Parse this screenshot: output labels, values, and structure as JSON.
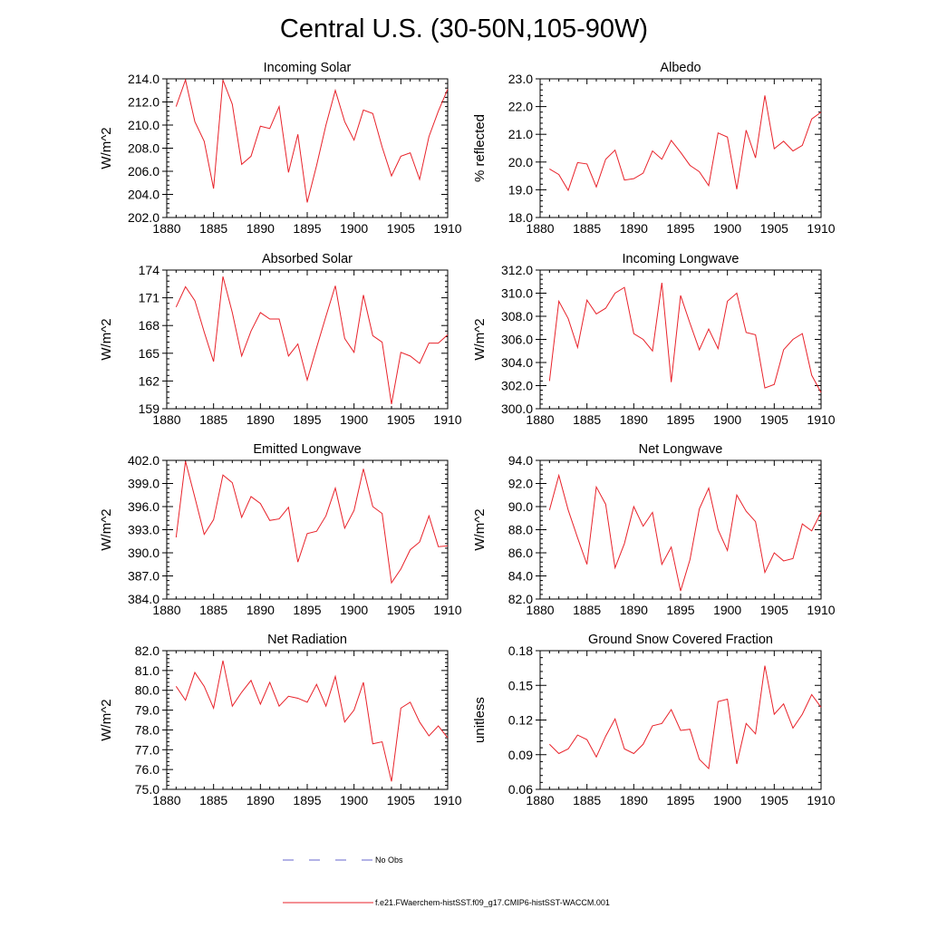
{
  "title": "Central U.S. (30-50N,105-90W)",
  "legend": {
    "entries": [
      {
        "label": "No Obs",
        "color": "#6666cc",
        "style": "dashed"
      },
      {
        "label": "f.e21.FWaerchem-histSST.f09_g17.CMIP6-histSST-WACCM.001",
        "color": "#e8222a",
        "style": "solid"
      }
    ]
  },
  "chart_data": [
    {
      "type": "line",
      "title": "Incoming Solar",
      "ylabel": "W/m^2",
      "xlim": [
        1880,
        1910
      ],
      "ylim": [
        202.0,
        214.0
      ],
      "xticks": [
        "1880",
        "1885",
        "1890",
        "1895",
        "1900",
        "1905",
        "1910"
      ],
      "yticks": [
        "202.0",
        "204.0",
        "206.0",
        "208.0",
        "210.0",
        "212.0",
        "214.0"
      ],
      "series": [
        {
          "color": "#e8222a",
          "x": [
            1881,
            1882,
            1883,
            1884,
            1885,
            1886,
            1887,
            1888,
            1889,
            1890,
            1891,
            1892,
            1893,
            1894,
            1895,
            1896,
            1897,
            1898,
            1899,
            1900,
            1901,
            1902,
            1903,
            1904,
            1905,
            1906,
            1907,
            1908,
            1909,
            1910
          ],
          "y": [
            211.6,
            213.9,
            210.3,
            208.6,
            204.5,
            213.9,
            211.8,
            206.6,
            207.3,
            209.9,
            209.7,
            211.6,
            205.9,
            209.2,
            203.3,
            206.5,
            210.0,
            213.0,
            210.3,
            208.7,
            211.3,
            211.0,
            208.1,
            205.6,
            207.3,
            207.6,
            205.3,
            209.0,
            211.2,
            213.1
          ]
        }
      ]
    },
    {
      "type": "line",
      "title": "Albedo",
      "ylabel": "% reflected",
      "xlim": [
        1880,
        1910
      ],
      "ylim": [
        18.0,
        23.0
      ],
      "xticks": [
        "1880",
        "1885",
        "1890",
        "1895",
        "1900",
        "1905",
        "1910"
      ],
      "yticks": [
        "18.0",
        "19.0",
        "20.0",
        "21.0",
        "22.0",
        "23.0"
      ],
      "series": [
        {
          "color": "#e8222a",
          "x": [
            1881,
            1882,
            1883,
            1884,
            1885,
            1886,
            1887,
            1888,
            1889,
            1890,
            1891,
            1892,
            1893,
            1894,
            1895,
            1896,
            1897,
            1898,
            1899,
            1900,
            1901,
            1902,
            1903,
            1904,
            1905,
            1906,
            1907,
            1908,
            1909,
            1910
          ],
          "y": [
            19.75,
            19.55,
            18.98,
            19.98,
            19.93,
            19.1,
            20.1,
            20.43,
            19.35,
            19.4,
            19.6,
            20.4,
            20.1,
            20.78,
            20.35,
            19.88,
            19.65,
            19.15,
            21.05,
            20.9,
            19.02,
            21.15,
            20.15,
            22.4,
            20.48,
            20.75,
            20.4,
            20.6,
            21.55,
            21.8
          ]
        }
      ]
    },
    {
      "type": "line",
      "title": "Absorbed Solar",
      "ylabel": "W/m^2",
      "xlim": [
        1880,
        1910
      ],
      "ylim": [
        159,
        174
      ],
      "xticks": [
        "1880",
        "1885",
        "1890",
        "1895",
        "1900",
        "1905",
        "1910"
      ],
      "yticks": [
        "159",
        "162",
        "165",
        "168",
        "171",
        "174"
      ],
      "series": [
        {
          "color": "#e8222a",
          "x": [
            1881,
            1882,
            1883,
            1884,
            1885,
            1886,
            1887,
            1888,
            1889,
            1890,
            1891,
            1892,
            1893,
            1894,
            1895,
            1896,
            1897,
            1898,
            1899,
            1900,
            1901,
            1902,
            1903,
            1904,
            1905,
            1906,
            1907,
            1908,
            1909,
            1910
          ],
          "y": [
            170.0,
            172.2,
            170.7,
            167.3,
            164.1,
            173.3,
            169.4,
            164.7,
            167.4,
            169.4,
            168.7,
            168.7,
            164.7,
            166.0,
            162.1,
            165.6,
            169.0,
            172.3,
            166.6,
            165.1,
            171.3,
            166.9,
            166.2,
            159.5,
            165.1,
            164.7,
            163.9,
            166.1,
            166.1,
            167.0
          ]
        }
      ]
    },
    {
      "type": "line",
      "title": "Incoming Longwave",
      "ylabel": "W/m^2",
      "xlim": [
        1880,
        1910
      ],
      "ylim": [
        300.0,
        312.0
      ],
      "xticks": [
        "1880",
        "1885",
        "1890",
        "1895",
        "1900",
        "1905",
        "1910"
      ],
      "yticks": [
        "300.0",
        "302.0",
        "304.0",
        "306.0",
        "308.0",
        "310.0",
        "312.0"
      ],
      "series": [
        {
          "color": "#e8222a",
          "x": [
            1881,
            1882,
            1883,
            1884,
            1885,
            1886,
            1887,
            1888,
            1889,
            1890,
            1891,
            1892,
            1893,
            1894,
            1895,
            1896,
            1897,
            1898,
            1899,
            1900,
            1901,
            1902,
            1903,
            1904,
            1905,
            1906,
            1907,
            1908,
            1909,
            1910
          ],
          "y": [
            302.4,
            309.3,
            307.8,
            305.3,
            309.4,
            308.2,
            308.7,
            310.0,
            310.5,
            306.5,
            306.0,
            305.0,
            310.9,
            302.3,
            309.8,
            307.4,
            305.1,
            306.9,
            305.2,
            309.3,
            310.0,
            306.6,
            306.4,
            301.8,
            302.1,
            305.1,
            306.0,
            306.5,
            302.9,
            301.4
          ]
        }
      ]
    },
    {
      "type": "line",
      "title": "Emitted Longwave",
      "ylabel": "W/m^2",
      "xlim": [
        1880,
        1910
      ],
      "ylim": [
        384.0,
        402.0
      ],
      "xticks": [
        "1880",
        "1885",
        "1890",
        "1895",
        "1900",
        "1905",
        "1910"
      ],
      "yticks": [
        "384.0",
        "387.0",
        "390.0",
        "393.0",
        "396.0",
        "399.0",
        "402.0"
      ],
      "series": [
        {
          "color": "#e8222a",
          "x": [
            1881,
            1882,
            1883,
            1884,
            1885,
            1886,
            1887,
            1888,
            1889,
            1890,
            1891,
            1892,
            1893,
            1894,
            1895,
            1896,
            1897,
            1898,
            1899,
            1900,
            1901,
            1902,
            1903,
            1904,
            1905,
            1906,
            1907,
            1908,
            1909,
            1910
          ],
          "y": [
            392.0,
            401.9,
            397.2,
            392.4,
            394.3,
            400.1,
            399.1,
            394.6,
            397.3,
            396.4,
            394.2,
            394.4,
            395.9,
            388.8,
            392.5,
            392.8,
            394.8,
            398.4,
            393.2,
            395.5,
            400.9,
            396.0,
            395.1,
            386.1,
            387.9,
            390.4,
            391.4,
            394.8,
            390.8,
            390.9
          ]
        }
      ]
    },
    {
      "type": "line",
      "title": "Net Longwave",
      "ylabel": "W/m^2",
      "xlim": [
        1880,
        1910
      ],
      "ylim": [
        82.0,
        94.0
      ],
      "xticks": [
        "1880",
        "1885",
        "1890",
        "1895",
        "1900",
        "1905",
        "1910"
      ],
      "yticks": [
        "82.0",
        "84.0",
        "86.0",
        "88.0",
        "90.0",
        "92.0",
        "94.0"
      ],
      "series": [
        {
          "color": "#e8222a",
          "x": [
            1881,
            1882,
            1883,
            1884,
            1885,
            1886,
            1887,
            1888,
            1889,
            1890,
            1891,
            1892,
            1893,
            1894,
            1895,
            1896,
            1897,
            1898,
            1899,
            1900,
            1901,
            1902,
            1903,
            1904,
            1905,
            1906,
            1907,
            1908,
            1909,
            1910
          ],
          "y": [
            89.7,
            92.7,
            89.7,
            87.3,
            85.0,
            91.7,
            90.2,
            84.7,
            86.8,
            90.0,
            88.3,
            89.5,
            85.0,
            86.5,
            82.7,
            85.4,
            89.8,
            91.6,
            88.0,
            86.2,
            91.0,
            89.6,
            88.7,
            84.3,
            86.0,
            85.3,
            85.5,
            88.5,
            87.9,
            89.5
          ]
        }
      ]
    },
    {
      "type": "line",
      "title": "Net Radiation",
      "ylabel": "W/m^2",
      "xlim": [
        1880,
        1910
      ],
      "ylim": [
        75.0,
        82.0
      ],
      "xticks": [
        "1880",
        "1885",
        "1890",
        "1895",
        "1900",
        "1905",
        "1910"
      ],
      "yticks": [
        "75.0",
        "76.0",
        "77.0",
        "78.0",
        "79.0",
        "80.0",
        "81.0",
        "82.0"
      ],
      "series": [
        {
          "color": "#e8222a",
          "x": [
            1881,
            1882,
            1883,
            1884,
            1885,
            1886,
            1887,
            1888,
            1889,
            1890,
            1891,
            1892,
            1893,
            1894,
            1895,
            1896,
            1897,
            1898,
            1899,
            1900,
            1901,
            1902,
            1903,
            1904,
            1905,
            1906,
            1907,
            1908,
            1909,
            1910
          ],
          "y": [
            80.2,
            79.5,
            80.9,
            80.2,
            79.1,
            81.5,
            79.2,
            79.9,
            80.5,
            79.3,
            80.4,
            79.2,
            79.7,
            79.6,
            79.4,
            80.3,
            79.2,
            80.7,
            78.4,
            79.0,
            80.4,
            77.3,
            77.4,
            75.4,
            79.1,
            79.4,
            78.4,
            77.7,
            78.2,
            77.6
          ]
        }
      ]
    },
    {
      "type": "line",
      "title": "Ground Snow Covered Fraction",
      "ylabel": "unitless",
      "xlim": [
        1880,
        1910
      ],
      "ylim": [
        0.06,
        0.18
      ],
      "xticks": [
        "1880",
        "1885",
        "1890",
        "1895",
        "1900",
        "1905",
        "1910"
      ],
      "yticks": [
        "0.06",
        "0.09",
        "0.12",
        "0.15",
        "0.18"
      ],
      "series": [
        {
          "color": "#e8222a",
          "x": [
            1881,
            1882,
            1883,
            1884,
            1885,
            1886,
            1887,
            1888,
            1889,
            1890,
            1891,
            1892,
            1893,
            1894,
            1895,
            1896,
            1897,
            1898,
            1899,
            1900,
            1901,
            1902,
            1903,
            1904,
            1905,
            1906,
            1907,
            1908,
            1909,
            1910
          ],
          "y": [
            0.099,
            0.091,
            0.095,
            0.107,
            0.103,
            0.088,
            0.106,
            0.121,
            0.095,
            0.091,
            0.099,
            0.115,
            0.117,
            0.129,
            0.111,
            0.112,
            0.086,
            0.078,
            0.136,
            0.138,
            0.082,
            0.117,
            0.108,
            0.167,
            0.125,
            0.134,
            0.113,
            0.125,
            0.142,
            0.131
          ]
        }
      ]
    }
  ]
}
